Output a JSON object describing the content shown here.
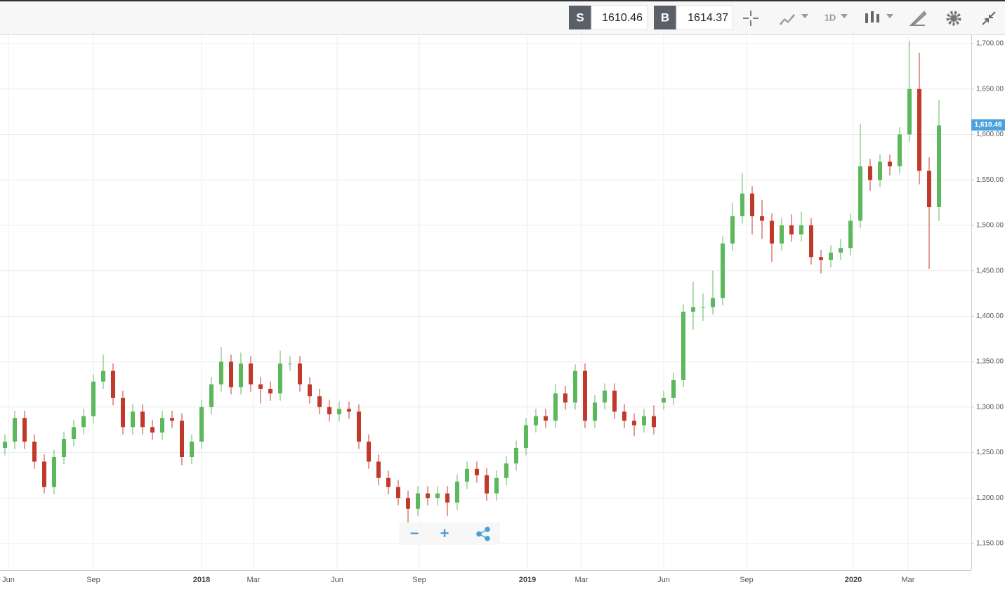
{
  "toolbar": {
    "sell_label": "S",
    "sell_price": "1610.46",
    "buy_label": "B",
    "buy_price": "1614.37",
    "interval": "1D"
  },
  "chart_data": {
    "type": "candlestick",
    "x_labels": [
      "Jun",
      "Sep",
      "2018",
      "Mar",
      "Jun",
      "Sep",
      "2019",
      "Mar",
      "Jun",
      "Sep",
      "2020",
      "Mar"
    ],
    "up_color": "#5cb85c",
    "down_color": "#c0392b",
    "open": [
      1255,
      1262,
      1288,
      1262,
      1240,
      1212,
      1245,
      1265,
      1278,
      1290,
      1328,
      1340,
      1310,
      1278,
      1295,
      1278,
      1272,
      1288,
      1285,
      1245,
      1262,
      1300,
      1325,
      1350,
      1322,
      1348,
      1325,
      1320,
      1315,
      1348,
      1348,
      1325,
      1312,
      1300,
      1292,
      1298,
      1295,
      1262,
      1240,
      1222,
      1212,
      1200,
      1188,
      1205,
      1200,
      1205,
      1195,
      1218,
      1232,
      1225,
      1205,
      1222,
      1238,
      1255,
      1280,
      1290,
      1285,
      1315,
      1305,
      1340,
      1285,
      1305,
      1318,
      1295,
      1285,
      1280,
      1290,
      1305,
      1310,
      1330,
      1405,
      1410,
      1410,
      1420,
      1480,
      1510,
      1535,
      1510,
      1505,
      1480,
      1500,
      1490,
      1500,
      1465,
      1462,
      1470,
      1475,
      1505,
      1565,
      1550,
      1570,
      1565,
      1600,
      1650,
      1560,
      1520
    ],
    "high": [
      1270,
      1296,
      1296,
      1270,
      1248,
      1253,
      1273,
      1286,
      1298,
      1336,
      1358,
      1348,
      1318,
      1303,
      1303,
      1286,
      1296,
      1296,
      1293,
      1270,
      1308,
      1333,
      1366,
      1358,
      1360,
      1356,
      1333,
      1328,
      1362,
      1356,
      1356,
      1333,
      1320,
      1308,
      1306,
      1306,
      1303,
      1270,
      1248,
      1230,
      1220,
      1208,
      1213,
      1213,
      1213,
      1213,
      1226,
      1240,
      1240,
      1233,
      1230,
      1246,
      1263,
      1288,
      1298,
      1298,
      1325,
      1323,
      1347,
      1348,
      1313,
      1326,
      1326,
      1303,
      1293,
      1298,
      1302,
      1318,
      1338,
      1413,
      1438,
      1425,
      1450,
      1488,
      1525,
      1557,
      1543,
      1528,
      1513,
      1508,
      1512,
      1515,
      1508,
      1473,
      1478,
      1485,
      1513,
      1612,
      1573,
      1578,
      1578,
      1608,
      1703,
      1690,
      1575,
      1638
    ],
    "low": [
      1247,
      1254,
      1254,
      1232,
      1205,
      1204,
      1237,
      1257,
      1270,
      1282,
      1320,
      1302,
      1270,
      1270,
      1270,
      1264,
      1264,
      1277,
      1236,
      1237,
      1254,
      1292,
      1317,
      1314,
      1314,
      1317,
      1304,
      1307,
      1307,
      1340,
      1317,
      1304,
      1292,
      1284,
      1284,
      1287,
      1254,
      1232,
      1214,
      1204,
      1192,
      1172,
      1180,
      1192,
      1192,
      1180,
      1187,
      1210,
      1217,
      1197,
      1197,
      1214,
      1230,
      1247,
      1272,
      1277,
      1277,
      1297,
      1297,
      1277,
      1277,
      1297,
      1287,
      1277,
      1268,
      1272,
      1270,
      1297,
      1302,
      1322,
      1385,
      1395,
      1402,
      1412,
      1472,
      1502,
      1490,
      1485,
      1460,
      1472,
      1482,
      1482,
      1457,
      1447,
      1454,
      1462,
      1467,
      1497,
      1538,
      1542,
      1555,
      1557,
      1592,
      1545,
      1452,
      1505
    ],
    "close": [
      1262,
      1288,
      1262,
      1240,
      1212,
      1245,
      1265,
      1278,
      1290,
      1328,
      1340,
      1310,
      1278,
      1295,
      1278,
      1272,
      1288,
      1285,
      1245,
      1262,
      1300,
      1325,
      1350,
      1322,
      1348,
      1325,
      1320,
      1315,
      1348,
      1348,
      1325,
      1312,
      1300,
      1292,
      1298,
      1295,
      1262,
      1240,
      1222,
      1212,
      1200,
      1188,
      1205,
      1200,
      1205,
      1195,
      1218,
      1232,
      1225,
      1205,
      1222,
      1238,
      1255,
      1280,
      1290,
      1285,
      1315,
      1305,
      1340,
      1285,
      1305,
      1318,
      1295,
      1285,
      1280,
      1290,
      1278,
      1310,
      1330,
      1405,
      1410,
      1410,
      1420,
      1480,
      1510,
      1535,
      1510,
      1505,
      1480,
      1500,
      1490,
      1500,
      1465,
      1462,
      1470,
      1475,
      1505,
      1565,
      1550,
      1570,
      1565,
      1600,
      1650,
      1560,
      1520,
      1610
    ],
    "ylim": [
      1120.6,
      1709.3
    ],
    "yticks": [
      {
        "value": 1150,
        "label": "1,150.00"
      },
      {
        "value": 1200,
        "label": "1,200.00"
      },
      {
        "value": 1250,
        "label": "1,250.00"
      },
      {
        "value": 1300,
        "label": "1,300.00"
      },
      {
        "value": 1350,
        "label": "1,350.00"
      },
      {
        "value": 1400,
        "label": "1,400.00"
      },
      {
        "value": 1450,
        "label": "1,450.00"
      },
      {
        "value": 1500,
        "label": "1,500.00"
      },
      {
        "value": 1550,
        "label": "1,550.00"
      },
      {
        "value": 1600,
        "label": "1,600.00"
      },
      {
        "value": 1650,
        "label": "1,650.00"
      },
      {
        "value": 1700,
        "label": "1,700.00"
      }
    ],
    "price_tag": {
      "value": 1610.46,
      "label": "1,610.46"
    },
    "grid": true
  }
}
